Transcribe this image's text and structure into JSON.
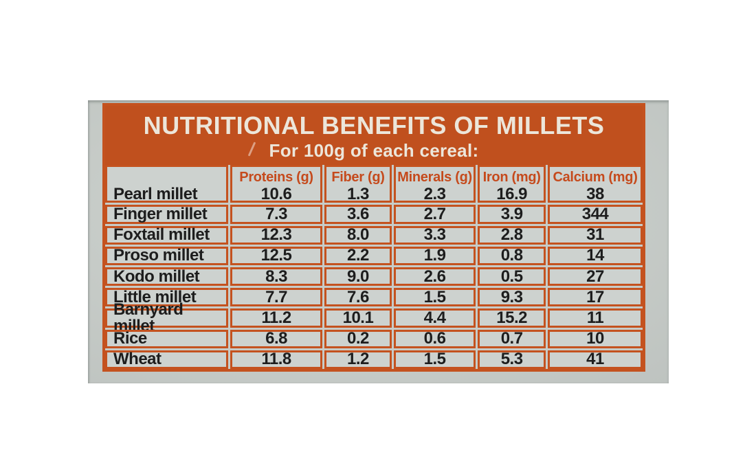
{
  "banner": {
    "title": "NUTRITIONAL BENEFITS OF MILLETS",
    "subtitle": "For 100g of each cereal:"
  },
  "table": {
    "columns": [
      "Proteins (g)",
      "Fiber (g)",
      "Minerals (g)",
      "Iron (mg)",
      "Calcium (mg)"
    ],
    "rows": [
      {
        "label": "Pearl millet",
        "values": [
          "10.6",
          "1.3",
          "2.3",
          "16.9",
          "38"
        ]
      },
      {
        "label": "Finger millet",
        "values": [
          "7.3",
          "3.6",
          "2.7",
          "3.9",
          "344"
        ]
      },
      {
        "label": "Foxtail millet",
        "values": [
          "12.3",
          "8.0",
          "3.3",
          "2.8",
          "31"
        ]
      },
      {
        "label": "Proso millet",
        "values": [
          "12.5",
          "2.2",
          "1.9",
          "0.8",
          "14"
        ]
      },
      {
        "label": "Kodo millet",
        "values": [
          "8.3",
          "9.0",
          "2.6",
          "0.5",
          "27"
        ]
      },
      {
        "label": "Little millet",
        "values": [
          "7.7",
          "7.6",
          "1.5",
          "9.3",
          "17"
        ]
      },
      {
        "label": "Barnyard millet",
        "values": [
          "11.2",
          "10.1",
          "4.4",
          "15.2",
          "11"
        ]
      },
      {
        "label": "Rice",
        "values": [
          "6.8",
          "0.2",
          "0.6",
          "0.7",
          "10"
        ]
      },
      {
        "label": "Wheat",
        "values": [
          "11.8",
          "1.2",
          "1.5",
          "5.3",
          "41"
        ]
      }
    ]
  },
  "colors": {
    "banner_orange": "#c0501e",
    "grid_line_orange": "#c4521f",
    "header_text_orange": "#c54a1c",
    "banner_text": "#ece6da",
    "photo_background_gray": "#c7ccc8",
    "cell_background_gray": "#cdd2cf",
    "body_text": "#1d1d1d"
  },
  "chart_data": {
    "type": "table",
    "title": "NUTRITIONAL BENEFITS OF MILLETS",
    "subtitle": "For 100g of each cereal:",
    "columns": [
      "Proteins (g)",
      "Fiber (g)",
      "Minerals (g)",
      "Iron (mg)",
      "Calcium (mg)"
    ],
    "rows": [
      {
        "label": "Pearl millet",
        "values": [
          10.6,
          1.3,
          2.3,
          16.9,
          38
        ]
      },
      {
        "label": "Finger millet",
        "values": [
          7.3,
          3.6,
          2.7,
          3.9,
          344
        ]
      },
      {
        "label": "Foxtail millet",
        "values": [
          12.3,
          8.0,
          3.3,
          2.8,
          31
        ]
      },
      {
        "label": "Proso millet",
        "values": [
          12.5,
          2.2,
          1.9,
          0.8,
          14
        ]
      },
      {
        "label": "Kodo millet",
        "values": [
          8.3,
          9.0,
          2.6,
          0.5,
          27
        ]
      },
      {
        "label": "Little millet",
        "values": [
          7.7,
          7.6,
          1.5,
          9.3,
          17
        ]
      },
      {
        "label": "Barnyard millet",
        "values": [
          11.2,
          10.1,
          4.4,
          15.2,
          11
        ]
      },
      {
        "label": "Rice",
        "values": [
          6.8,
          0.2,
          0.6,
          0.7,
          10
        ]
      },
      {
        "label": "Wheat",
        "values": [
          11.8,
          1.2,
          1.5,
          5.3,
          41
        ]
      }
    ]
  }
}
